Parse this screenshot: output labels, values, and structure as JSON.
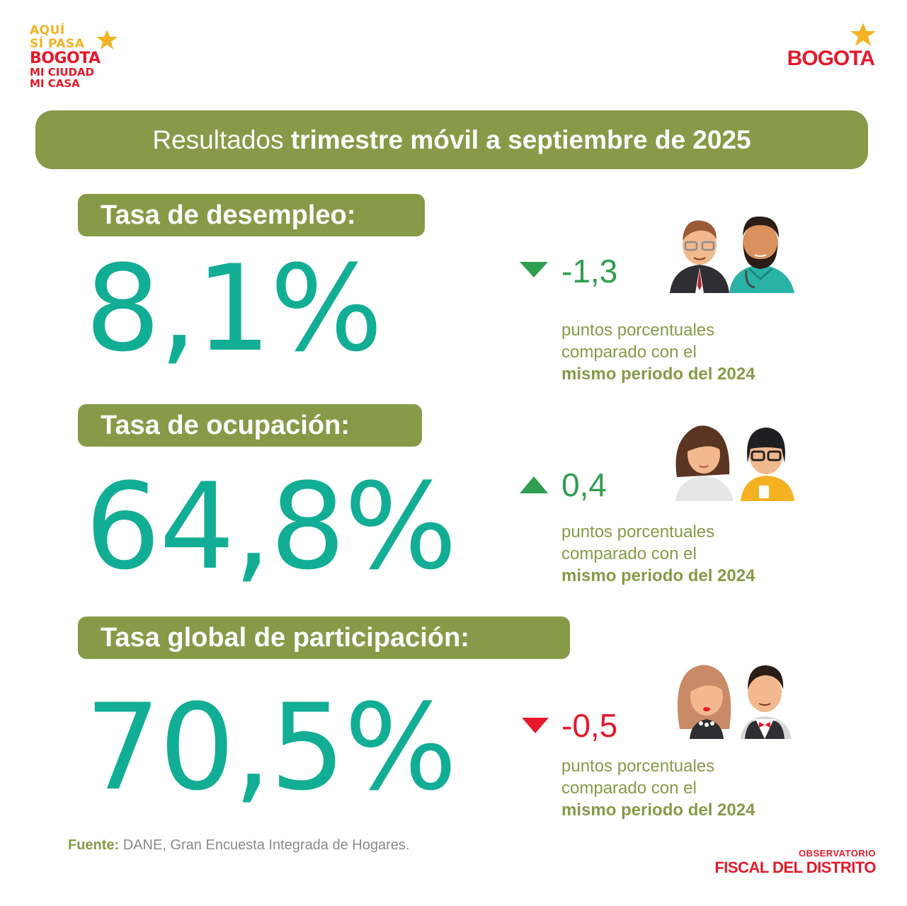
{
  "logo_left": {
    "line1": "AQUÍ",
    "line2": "SÍ PASA",
    "line3": "BOGOTA",
    "line4": "MI CIUDAD",
    "line5": "MI CASA"
  },
  "logo_right": {
    "text": "BOGOTA"
  },
  "banner": {
    "light": "Resultados ",
    "bold": "trimestre móvil a septiembre de 2025"
  },
  "indicators": [
    {
      "label": "Tasa de desempleo:",
      "value": "8,1%",
      "change": "-1,3",
      "direction": "down",
      "change_color": "#2f9e4f",
      "desc_line1": "puntos porcentuales",
      "desc_line2": "comparado con el",
      "desc_line3": "mismo periodo del 2024",
      "illustration": "man-with-glasses-and-bearded-doctor-icon"
    },
    {
      "label": "Tasa de ocupación:",
      "value": "64,8%",
      "change": "0,4",
      "direction": "up",
      "change_color": "#2f9e4f",
      "desc_line1": "puntos porcentuales",
      "desc_line2": "comparado con el",
      "desc_line3": "mismo periodo del 2024",
      "illustration": "two-women-workers-icon"
    },
    {
      "label": "Tasa global de participación:",
      "value": "70,5%",
      "change": "-0,5",
      "direction": "down",
      "change_color": "#e4192b",
      "desc_line1": "puntos porcentuales",
      "desc_line2": "comparado con el",
      "desc_line3": "mismo periodo del 2024",
      "illustration": "woman-and-man-with-bowtie-icon"
    }
  ],
  "source": {
    "prefix": "Fuente:",
    "text": " DANE, Gran Encuesta Integrada de Hogares."
  },
  "observatorio": {
    "line1": "OBSERVATORIO",
    "line2": "FISCAL DEL DISTRITO"
  },
  "colors": {
    "olive": "#879a48",
    "teal": "#11ae95",
    "green": "#2f9e4f",
    "red": "#e4192b",
    "gold": "#f4b223"
  }
}
